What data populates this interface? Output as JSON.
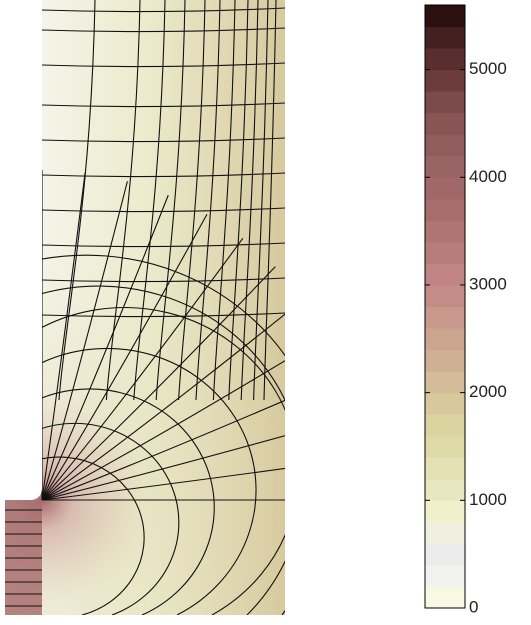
{
  "chart_data": {
    "type": "contour",
    "colorbar": {
      "clim": [
        0,
        5600
      ],
      "ticks": [
        0,
        1000,
        2000,
        3000,
        4000,
        5000
      ],
      "colors": [
        "#f8f8e4",
        "#f2f2ee",
        "#ececec",
        "#f0f0e0",
        "#f0f0cc",
        "#e8e8c0",
        "#e4e2b4",
        "#dedaa8",
        "#dcd4a0",
        "#d8c89c",
        "#d4bc98",
        "#d0b094",
        "#cca490",
        "#c8988c",
        "#c48c88",
        "#c08484",
        "#b87c7c",
        "#b07474",
        "#a86c6c",
        "#a06868",
        "#986464",
        "#905c5c",
        "#885454",
        "#7c4a4a",
        "#6c3c3c",
        "#5a2e2e",
        "#442020",
        "#2c1010"
      ]
    }
  }
}
